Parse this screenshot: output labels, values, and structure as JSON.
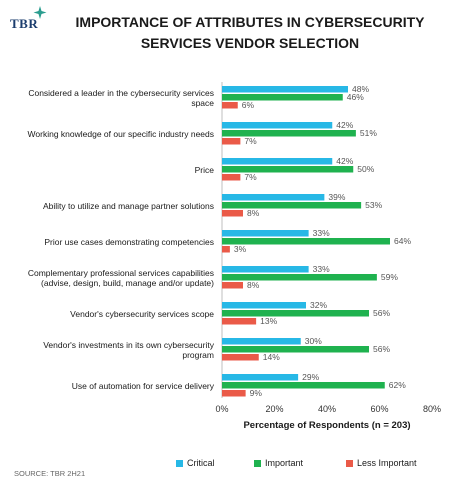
{
  "header": {
    "logo_text": "TBR",
    "title_line1": "IMPORTANCE OF ATTRIBUTES IN CYBERSECURITY",
    "title_line2": "SERVICES VENDOR SELECTION"
  },
  "source": "SOURCE: TBR 2H21",
  "colors": {
    "critical": "#27b8e6",
    "important": "#1fb24f",
    "less_important": "#ea5a48"
  },
  "chart_data": {
    "type": "bar",
    "orientation": "horizontal",
    "title": "IMPORTANCE OF ATTRIBUTES IN CYBERSECURITY SERVICES VENDOR SELECTION",
    "xlabel": "Percentage of Respondents (n = 203)",
    "ylabel": "",
    "xlim": [
      0,
      80
    ],
    "xticks": [
      "0%",
      "20%",
      "40%",
      "60%",
      "80%"
    ],
    "grid": false,
    "legend_position": "bottom",
    "categories": [
      [
        "Considered a leader in the cybersecurity services",
        "space"
      ],
      [
        "Working knowledge of our specific industry needs"
      ],
      [
        "Price"
      ],
      [
        "Ability to utilize and manage partner solutions"
      ],
      [
        "Prior use cases demonstrating competencies"
      ],
      [
        "Complementary professional services capabilities",
        "(advise, design, build, manage and/or update)"
      ],
      [
        "Vendor's cybersecurity services scope"
      ],
      [
        "Vendor's investments in its own cybersecurity",
        "program"
      ],
      [
        "Use of automation for service delivery"
      ]
    ],
    "series": [
      {
        "name": "Critical",
        "values": [
          48,
          42,
          42,
          39,
          33,
          33,
          32,
          30,
          29
        ],
        "labels": [
          "48%",
          "42%",
          "42%",
          "39%",
          "33%",
          "33%",
          "32%",
          "30%",
          "29%"
        ]
      },
      {
        "name": "Important",
        "values": [
          46,
          51,
          50,
          53,
          64,
          59,
          56,
          56,
          62
        ],
        "labels": [
          "46%",
          "51%",
          "50%",
          "53%",
          "64%",
          "59%",
          "56%",
          "56%",
          "62%"
        ]
      },
      {
        "name": "Less Important",
        "values": [
          6,
          7,
          7,
          8,
          3,
          8,
          13,
          14,
          9
        ],
        "labels": [
          "6%",
          "7%",
          "7%",
          "8%",
          "3%",
          "8%",
          "13%",
          "14%",
          "9%"
        ]
      }
    ]
  }
}
